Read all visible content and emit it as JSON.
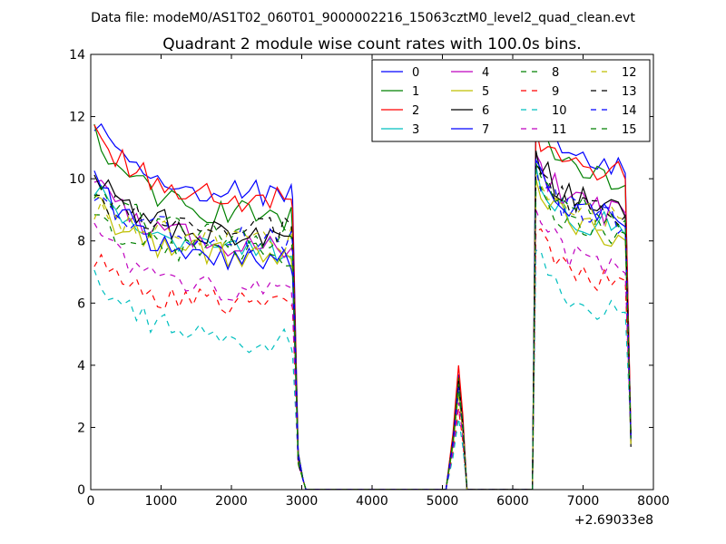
{
  "header": {
    "data_file": "Data file: modeM0/AS1T02_060T01_9000002216_15063cztM0_level2_quad_clean.evt"
  },
  "chart_data": {
    "type": "line",
    "title": "Quadrant 2 module wise count rates with 100.0s bins.",
    "xlabel": "",
    "ylabel": "",
    "x_offset_label": "+2.69033e8",
    "xlim": [
      0,
      8000
    ],
    "ylim": [
      0,
      14
    ],
    "xticks": [
      0,
      1000,
      2000,
      3000,
      4000,
      5000,
      6000,
      7000,
      8000
    ],
    "yticks": [
      0,
      2,
      4,
      6,
      8,
      10,
      12,
      14
    ],
    "legend_position": "top-right",
    "legend_columns": 4,
    "segments": [
      {
        "x_start": 0,
        "x_end": 2850,
        "step": 100
      },
      {
        "x_start": 5050,
        "x_end": 5350,
        "step": 100
      },
      {
        "x_start": 6280,
        "x_end": 7650,
        "step": 100
      }
    ],
    "series": [
      {
        "name": "0",
        "color": "#0000ff",
        "dash": "solid",
        "start": 11.9,
        "level": 9.5,
        "spike": 3.7,
        "after": 12.6,
        "after_level": 10.2
      },
      {
        "name": "1",
        "color": "#008000",
        "dash": "solid",
        "start": 11.6,
        "level": 8.8,
        "spike": 3.6,
        "after": 12.0,
        "after_level": 9.8
      },
      {
        "name": "2",
        "color": "#ff0000",
        "dash": "solid",
        "start": 11.8,
        "level": 9.3,
        "spike": 4.0,
        "after": 11.6,
        "after_level": 10.1
      },
      {
        "name": "3",
        "color": "#00bfbf",
        "dash": "solid",
        "start": 9.8,
        "level": 7.6,
        "spike": 3.2,
        "after": 10.4,
        "after_level": 8.4
      },
      {
        "name": "4",
        "color": "#bf00bf",
        "dash": "solid",
        "start": 10.4,
        "level": 7.8,
        "spike": 3.3,
        "after": 10.8,
        "after_level": 8.8
      },
      {
        "name": "5",
        "color": "#bfbf00",
        "dash": "solid",
        "start": 9.3,
        "level": 7.5,
        "spike": 3.1,
        "after": 10.0,
        "after_level": 8.1
      },
      {
        "name": "6",
        "color": "#000000",
        "dash": "solid",
        "start": 10.6,
        "level": 8.1,
        "spike": 3.5,
        "after": 10.9,
        "after_level": 9.0
      },
      {
        "name": "7",
        "color": "#0000ff",
        "dash": "solid",
        "start": 10.2,
        "level": 7.4,
        "spike": 3.4,
        "after": 10.6,
        "after_level": 8.7
      },
      {
        "name": "8",
        "color": "#008000",
        "dash": "dashed",
        "start": 8.6,
        "level": 7.6,
        "spike": 3.2,
        "after": 9.6,
        "after_level": 8.3
      },
      {
        "name": "9",
        "color": "#ff0000",
        "dash": "dashed",
        "start": 7.7,
        "level": 5.9,
        "spike": 2.6,
        "after": 8.3,
        "after_level": 6.6
      },
      {
        "name": "10",
        "color": "#00bfbf",
        "dash": "dashed",
        "start": 7.0,
        "level": 4.8,
        "spike": 2.3,
        "after": 7.7,
        "after_level": 5.6
      },
      {
        "name": "11",
        "color": "#bf00bf",
        "dash": "dashed",
        "start": 8.5,
        "level": 6.3,
        "spike": 2.8,
        "after": 9.0,
        "after_level": 7.1
      },
      {
        "name": "12",
        "color": "#bfbf00",
        "dash": "dashed",
        "start": 9.1,
        "level": 8.0,
        "spike": 3.3,
        "after": 10.2,
        "after_level": 8.6
      },
      {
        "name": "13",
        "color": "#000000",
        "dash": "dashed",
        "start": 9.6,
        "level": 8.3,
        "spike": 3.4,
        "after": 10.5,
        "after_level": 8.9
      },
      {
        "name": "14",
        "color": "#0000ff",
        "dash": "dashed",
        "start": 9.7,
        "level": 8.0,
        "spike": 3.3,
        "after": 10.3,
        "after_level": 8.6
      },
      {
        "name": "15",
        "color": "#008000",
        "dash": "dashed",
        "start": 9.9,
        "level": 8.1,
        "spike": 3.4,
        "after": 10.5,
        "after_level": 8.7
      }
    ]
  }
}
